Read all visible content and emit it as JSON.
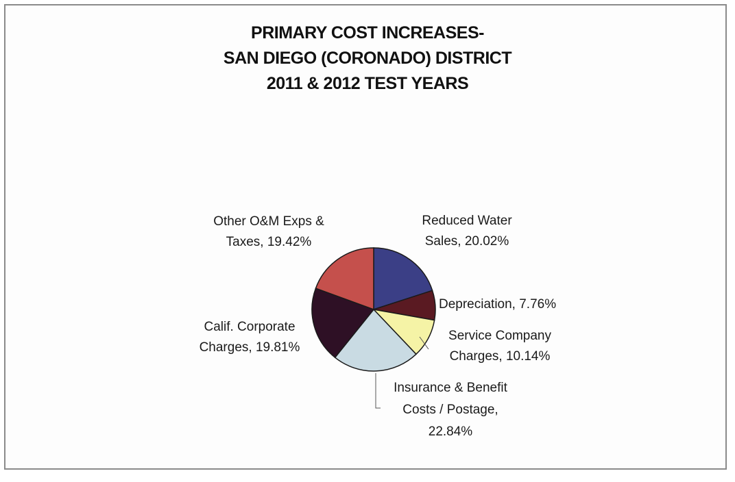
{
  "chart_data": {
    "type": "pie",
    "title_lines": [
      "PRIMARY COST INCREASES-",
      "SAN DIEGO (CORONADO) DISTRICT",
      "2011 & 2012 TEST YEARS"
    ],
    "slices": [
      {
        "name": "Reduced Water Sales",
        "value": 20.02,
        "label_lines": [
          "Reduced Water",
          "Sales, 20.02%"
        ],
        "color": "#3b3f86"
      },
      {
        "name": "Depreciation",
        "value": 7.76,
        "label_lines": [
          "Depreciation, 7.76%"
        ],
        "color": "#5a1a22"
      },
      {
        "name": "Service Company Charges",
        "value": 10.14,
        "label_lines": [
          "Service Company",
          "Charges, 10.14%"
        ],
        "color": "#f5f3a6"
      },
      {
        "name": "Insurance & Benefit Costs / Postage",
        "value": 22.84,
        "label_lines": [
          "Insurance & Benefit",
          "Costs / Postage,",
          "22.84%"
        ],
        "color": "#c9dbe3"
      },
      {
        "name": "Calif. Corporate Charges",
        "value": 19.81,
        "label_lines": [
          "Calif. Corporate",
          "Charges, 19.81%"
        ],
        "color": "#2e1025"
      },
      {
        "name": "Other O&M Exps & Taxes",
        "value": 19.42,
        "label_lines": [
          "Other O&M Exps &",
          "Taxes, 19.42%"
        ],
        "color": "#c5504c"
      }
    ],
    "start_angle_deg": 0,
    "direction": "clockwise"
  }
}
